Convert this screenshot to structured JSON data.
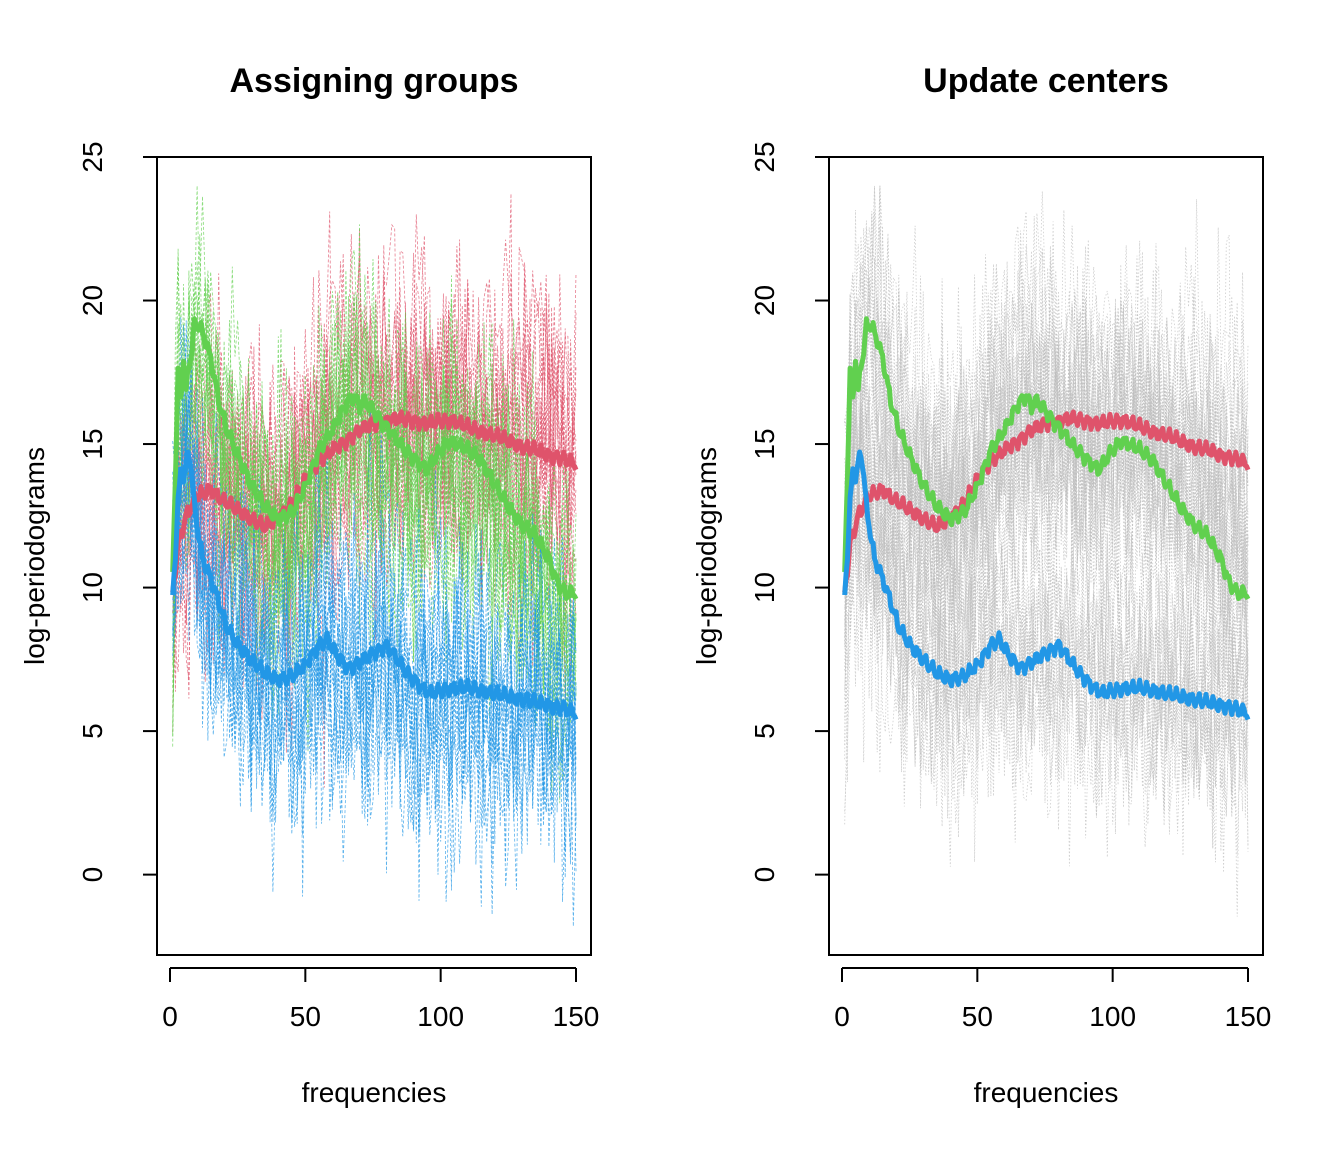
{
  "colors": {
    "red": "#DF536B",
    "green": "#61D04F",
    "blue": "#2297E6",
    "gray": "#BEBEBE"
  },
  "chart_data": [
    {
      "type": "line",
      "title": "Assigning groups",
      "xlabel": "frequencies",
      "ylabel": "log-periodograms",
      "xlim": [
        0,
        150
      ],
      "ylim": [
        -2.8,
        25
      ],
      "xticks": [
        0,
        50,
        100,
        150
      ],
      "yticks": [
        0,
        5,
        10,
        15,
        20,
        25
      ],
      "grid": false,
      "legend": "none",
      "background_curves": "dashed per-series periodograms colored by assigned group (red, green, blue), y range approx -2 to 24",
      "series": [
        {
          "color": "red",
          "x": [
            1,
            3,
            6,
            10,
            15,
            20,
            25,
            30,
            35,
            40,
            45,
            50,
            55,
            60,
            65,
            70,
            75,
            80,
            85,
            90,
            95,
            100,
            105,
            110,
            115,
            120,
            125,
            130,
            135,
            140,
            145,
            150
          ],
          "values": [
            9.8,
            11.5,
            12.5,
            13.2,
            13.4,
            13.0,
            12.7,
            12.4,
            12.1,
            12.4,
            12.9,
            13.8,
            14.4,
            14.8,
            15.1,
            15.5,
            15.7,
            15.8,
            15.9,
            15.8,
            15.7,
            15.8,
            15.8,
            15.6,
            15.4,
            15.3,
            15.1,
            14.9,
            14.8,
            14.6,
            14.5,
            14.3
          ]
        },
        {
          "color": "green",
          "x": [
            1,
            2,
            3,
            4,
            5,
            6,
            7,
            8,
            9,
            10,
            12,
            15,
            18,
            21,
            25,
            30,
            35,
            40,
            45,
            50,
            55,
            60,
            65,
            68,
            70,
            72,
            75,
            78,
            80,
            85,
            90,
            95,
            100,
            103,
            106,
            110,
            115,
            120,
            125,
            130,
            135,
            140,
            143,
            146,
            150
          ],
          "values": [
            10.5,
            14.0,
            17.5,
            16.5,
            18.0,
            16.8,
            17.8,
            18.2,
            19.1,
            19.2,
            18.9,
            18.0,
            16.5,
            15.5,
            14.6,
            13.6,
            12.8,
            12.4,
            12.6,
            13.5,
            14.8,
            15.5,
            16.4,
            16.7,
            16.3,
            16.5,
            16.2,
            15.8,
            15.6,
            15.0,
            14.5,
            14.1,
            14.8,
            15.1,
            15.0,
            14.8,
            14.4,
            13.6,
            12.8,
            12.2,
            11.8,
            11.0,
            10.2,
            9.8,
            9.8
          ]
        },
        {
          "color": "blue",
          "x": [
            1,
            2,
            3,
            4,
            5,
            6,
            7,
            8,
            9,
            10,
            12,
            15,
            18,
            21,
            25,
            30,
            35,
            40,
            45,
            50,
            55,
            58,
            62,
            66,
            70,
            75,
            80,
            84,
            88,
            92,
            96,
            100,
            105,
            110,
            115,
            120,
            125,
            130,
            135,
            140,
            145,
            150
          ],
          "values": [
            9.7,
            11.2,
            13.0,
            14.0,
            13.8,
            14.3,
            14.7,
            14.0,
            12.8,
            12.2,
            11.0,
            10.3,
            9.5,
            8.6,
            8.0,
            7.5,
            7.0,
            6.8,
            6.9,
            7.3,
            8.0,
            8.2,
            7.6,
            7.2,
            7.4,
            7.7,
            8.0,
            7.5,
            7.0,
            6.6,
            6.3,
            6.4,
            6.5,
            6.5,
            6.4,
            6.3,
            6.2,
            6.1,
            6.0,
            5.9,
            5.8,
            5.6
          ]
        }
      ]
    },
    {
      "type": "line",
      "title": "Update centers",
      "xlabel": "frequencies",
      "ylabel": "log-periodograms",
      "xlim": [
        0,
        150
      ],
      "ylim": [
        -2.8,
        25
      ],
      "xticks": [
        0,
        50,
        100,
        150
      ],
      "yticks": [
        0,
        5,
        10,
        15,
        20,
        25
      ],
      "grid": false,
      "legend": "none",
      "background_curves": "dotted gray periodograms of all series, y range approx -2 to 24",
      "series": [
        {
          "color": "red",
          "x": [
            1,
            3,
            6,
            10,
            15,
            20,
            25,
            30,
            35,
            40,
            45,
            50,
            55,
            60,
            65,
            70,
            75,
            80,
            85,
            90,
            95,
            100,
            105,
            110,
            115,
            120,
            125,
            130,
            135,
            140,
            145,
            150
          ],
          "values": [
            9.8,
            11.5,
            12.5,
            13.2,
            13.4,
            13.0,
            12.7,
            12.4,
            12.1,
            12.4,
            12.9,
            13.8,
            14.4,
            14.8,
            15.1,
            15.5,
            15.7,
            15.8,
            15.9,
            15.8,
            15.7,
            15.8,
            15.8,
            15.6,
            15.4,
            15.3,
            15.1,
            14.9,
            14.8,
            14.6,
            14.5,
            14.3
          ]
        },
        {
          "color": "green",
          "x": [
            1,
            2,
            3,
            4,
            5,
            6,
            7,
            8,
            9,
            10,
            12,
            15,
            18,
            21,
            25,
            30,
            35,
            40,
            45,
            50,
            55,
            60,
            65,
            68,
            70,
            72,
            75,
            78,
            80,
            85,
            90,
            95,
            100,
            103,
            106,
            110,
            115,
            120,
            125,
            130,
            135,
            140,
            143,
            146,
            150
          ],
          "values": [
            10.5,
            14.0,
            17.5,
            16.5,
            18.0,
            16.8,
            17.8,
            18.2,
            19.1,
            19.2,
            18.9,
            18.0,
            16.5,
            15.5,
            14.6,
            13.6,
            12.8,
            12.4,
            12.6,
            13.5,
            14.8,
            15.5,
            16.4,
            16.7,
            16.3,
            16.5,
            16.2,
            15.8,
            15.6,
            15.0,
            14.5,
            14.1,
            14.8,
            15.1,
            15.0,
            14.8,
            14.4,
            13.6,
            12.8,
            12.2,
            11.8,
            11.0,
            10.2,
            9.8,
            9.8
          ]
        },
        {
          "color": "blue",
          "x": [
            1,
            2,
            3,
            4,
            5,
            6,
            7,
            8,
            9,
            10,
            12,
            15,
            18,
            21,
            25,
            30,
            35,
            40,
            45,
            50,
            55,
            58,
            62,
            66,
            70,
            75,
            80,
            84,
            88,
            92,
            96,
            100,
            105,
            110,
            115,
            120,
            125,
            130,
            135,
            140,
            145,
            150
          ],
          "values": [
            9.7,
            11.2,
            13.0,
            14.0,
            13.8,
            14.3,
            14.7,
            14.0,
            12.8,
            12.2,
            11.0,
            10.3,
            9.5,
            8.6,
            8.0,
            7.5,
            7.0,
            6.8,
            6.9,
            7.3,
            8.0,
            8.2,
            7.6,
            7.2,
            7.4,
            7.7,
            8.0,
            7.5,
            7.0,
            6.6,
            6.3,
            6.4,
            6.5,
            6.5,
            6.4,
            6.3,
            6.2,
            6.1,
            6.0,
            5.9,
            5.8,
            5.6
          ]
        }
      ]
    }
  ]
}
